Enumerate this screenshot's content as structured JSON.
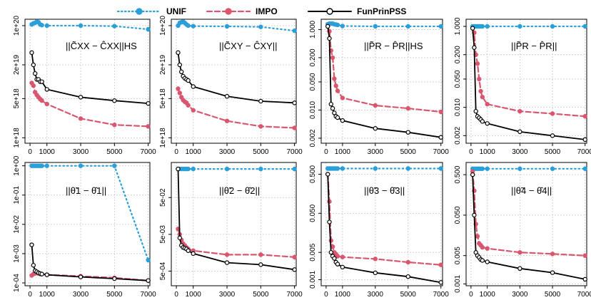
{
  "legend": [
    {
      "name": "UNIF",
      "color": "#2b9fd8",
      "style": "dotted",
      "marker": "filled"
    },
    {
      "name": "IMPO",
      "color": "#d9566e",
      "style": "dashed",
      "marker": "filled"
    },
    {
      "name": "FunPrinPSS",
      "color": "#000000",
      "style": "solid",
      "marker": "open"
    }
  ],
  "chart_data": [
    {
      "type": "line",
      "title": "||C̃XX − ĈXX||HS",
      "log_y": true,
      "x": [
        100,
        200,
        300,
        400,
        500,
        600,
        700,
        1000,
        3000,
        5000,
        7000
      ],
      "ylim": [
        8e+17,
        1.3e+20
      ],
      "ytick_values": [
        1e+18,
        5e+18,
        2e+19,
        1e+20
      ],
      "ytick_labels": [
        "1e+18",
        "5e+18",
        "2e+19",
        "1e+20"
      ],
      "xtick_values": [
        0,
        1000,
        3000,
        5000,
        7000
      ],
      "xtick_labels": [
        "0",
        "1000",
        "3000",
        "5000",
        "7000"
      ],
      "series": [
        {
          "name": "UNIF",
          "values": [
            1.05e+20,
            1.1e+20,
            1.12e+20,
            1.18e+20,
            1.15e+20,
            1.05e+20,
            1.02e+20,
            1e+20,
            1e+20,
            9.8e+19,
            8.6e+19
          ]
        },
        {
          "name": "IMPO",
          "values": [
            9.5e+18,
            8.5e+18,
            6.5e+18,
            5.8e+18,
            5.3e+18,
            4.9e+18,
            4.6e+18,
            4e+18,
            2.2e+18,
            1.7e+18,
            1.6e+18
          ]
        },
        {
          "name": "FunPrinPSS",
          "values": [
            3.3e+19,
            2e+19,
            1.4e+19,
            1.1e+19,
            1.1e+19,
            1e+19,
            1e+19,
            7.3e+18,
            5.3e+18,
            4.6e+18,
            4.1e+18
          ]
        }
      ]
    },
    {
      "type": "line",
      "title": "||C̃XY − ĈXY||",
      "log_y": true,
      "x": [
        100,
        200,
        300,
        400,
        500,
        600,
        700,
        1000,
        3000,
        5000,
        7000
      ],
      "ylim": [
        8e+17,
        1.3e+20
      ],
      "ytick_values": [
        1e+18,
        5e+18,
        2e+19,
        1e+20
      ],
      "ytick_labels": [
        "1e+18",
        "5e+18",
        "2e+19",
        "1e+20"
      ],
      "xtick_values": [
        0,
        1000,
        3000,
        5000,
        7000
      ],
      "xtick_labels": [
        "0",
        "1000",
        "3000",
        "5000",
        "7000"
      ],
      "series": [
        {
          "name": "UNIF",
          "values": [
            1e+20,
            1.12e+20,
            1.15e+20,
            1.18e+20,
            1.12e+20,
            1.05e+20,
            1e+20,
            9.8e+19,
            9.7e+19,
            9.5e+19,
            8.1e+19
          ]
        },
        {
          "name": "IMPO",
          "values": [
            7.5e+18,
            6.3e+18,
            5.3e+18,
            4.7e+18,
            4.4e+18,
            4.2e+18,
            3.8e+18,
            3.1e+18,
            2e+18,
            1.6e+18,
            1.5e+18
          ]
        },
        {
          "name": "FunPrinPSS",
          "values": [
            3.3e+19,
            2e+19,
            1.5e+19,
            1.25e+19,
            1.15e+19,
            1.1e+19,
            1.05e+19,
            8.2e+18,
            5.5e+18,
            4.5e+18,
            4.2e+18
          ]
        }
      ]
    },
    {
      "type": "line",
      "title": "||P̃R − P̂R||HS",
      "log_y": true,
      "x": [
        100,
        200,
        300,
        400,
        500,
        600,
        700,
        1000,
        3000,
        5000,
        7000
      ],
      "ylim": [
        0.0015,
        1.8
      ],
      "ytick_values": [
        0.002,
        0.01,
        0.05,
        0.2,
        1
      ],
      "ytick_labels": [
        "0.002",
        "0.010",
        "0.050",
        "0.200",
        "1.000"
      ],
      "xtick_values": [
        0,
        1000,
        3000,
        5000,
        7000
      ],
      "xtick_labels": [
        "0",
        "1000",
        "3000",
        "5000",
        "7000"
      ],
      "series": [
        {
          "name": "UNIF",
          "values": [
            1.35,
            1.4,
            1.4,
            1.4,
            1.35,
            1.33,
            1.3,
            1.22,
            1.2,
            1.2,
            1.2
          ]
        },
        {
          "name": "IMPO",
          "values": [
            1.2,
            0.9,
            0.3,
            0.2,
            0.06,
            0.04,
            0.03,
            0.02,
            0.013,
            0.011,
            0.009
          ]
        },
        {
          "name": "FunPrinPSS",
          "values": [
            1.2,
            0.6,
            0.014,
            0.011,
            0.0085,
            0.007,
            0.0065,
            0.0055,
            0.0035,
            0.0028,
            0.0021
          ]
        }
      ]
    },
    {
      "type": "line",
      "title": "||P̃R − P̂R||",
      "log_y": true,
      "x": [
        100,
        200,
        300,
        400,
        500,
        600,
        700,
        1000,
        3000,
        5000,
        7000
      ],
      "ylim": [
        0.0013,
        1.5
      ],
      "ytick_values": [
        0.002,
        0.01,
        0.05,
        0.2,
        1
      ],
      "ytick_labels": [
        "0.002",
        "0.010",
        "0.050",
        "0.200",
        "1.000"
      ],
      "xtick_values": [
        0,
        1000,
        3000,
        5000,
        7000
      ],
      "xtick_labels": [
        "0",
        "1000",
        "3000",
        "5000",
        "7000"
      ],
      "series": [
        {
          "name": "UNIF",
          "values": [
            1,
            1,
            1,
            1,
            1,
            1,
            1,
            1,
            1,
            1,
            1
          ]
        },
        {
          "name": "IMPO",
          "values": [
            0.9,
            0.7,
            0.2,
            0.12,
            0.05,
            0.025,
            0.018,
            0.012,
            0.008,
            0.007,
            0.006
          ]
        },
        {
          "name": "FunPrinPSS",
          "values": [
            0.9,
            0.3,
            0.008,
            0.006,
            0.0055,
            0.005,
            0.0045,
            0.004,
            0.0025,
            0.002,
            0.0016
          ]
        }
      ]
    },
    {
      "type": "line",
      "title": "||θ̃1 − θ̂1||",
      "log_y": true,
      "x": [
        100,
        200,
        300,
        400,
        500,
        600,
        700,
        1000,
        3000,
        5000,
        7000
      ],
      "ylim": [
        8e-05,
        1.3
      ],
      "ytick_values": [
        0.0001,
        0.001,
        0.01,
        0.1,
        1
      ],
      "ytick_labels": [
        "1e-04",
        "1e-03",
        "1e-02",
        "1e-01",
        "1e+00"
      ],
      "xtick_values": [
        0,
        1000,
        3000,
        5000,
        7000
      ],
      "xtick_labels": [
        "0",
        "1000",
        "3000",
        "5000",
        "7000"
      ],
      "series": [
        {
          "name": "UNIF",
          "values": [
            1,
            1,
            1,
            1,
            1,
            1,
            1,
            1,
            1,
            1,
            0.0006
          ]
        },
        {
          "name": "IMPO",
          "values": [
            0.00018,
            0.0002,
            0.00021,
            0.00022,
            0.00021,
            0.0002,
            0.0002,
            0.00019,
            0.00017,
            0.00015,
            0.00012
          ]
        },
        {
          "name": "FunPrinPSS",
          "values": [
            0.002,
            0.0004,
            0.00026,
            0.00024,
            0.00022,
            0.00021,
            0.0002,
            0.00019,
            0.00016,
            0.00014,
            0.00012
          ]
        }
      ]
    },
    {
      "type": "line",
      "title": "||θ̃2 − θ̂2||",
      "log_y": true,
      "x": [
        100,
        200,
        300,
        400,
        500,
        600,
        700,
        1000,
        3000,
        5000,
        7000
      ],
      "ylim": [
        0.0002,
        0.45
      ],
      "ytick_values": [
        0.0005,
        0.005,
        0.05
      ],
      "ytick_labels": [
        "5e-04",
        "5e-03",
        "5e-02"
      ],
      "xtick_values": [
        0,
        1000,
        3000,
        5000,
        7000
      ],
      "xtick_labels": [
        "0",
        "1000",
        "3000",
        "5000",
        "7000"
      ],
      "series": [
        {
          "name": "UNIF",
          "values": [
            0.3,
            0.3,
            0.3,
            0.3,
            0.3,
            0.3,
            0.3,
            0.3,
            0.3,
            0.3,
            0.3
          ]
        },
        {
          "name": "IMPO",
          "values": [
            0.007,
            0.005,
            0.0035,
            0.0028,
            0.0025,
            0.0022,
            0.002,
            0.0018,
            0.0014,
            0.0014,
            0.0012
          ]
        },
        {
          "name": "FunPrinPSS",
          "values": [
            0.3,
            0.004,
            0.0025,
            0.0022,
            0.0021,
            0.002,
            0.0018,
            0.0015,
            0.00085,
            0.00075,
            0.00055
          ]
        }
      ]
    },
    {
      "type": "line",
      "title": "||θ̃3 − θ̂3||",
      "log_y": true,
      "x": [
        100,
        200,
        300,
        400,
        500,
        600,
        700,
        1000,
        3000,
        5000,
        7000
      ],
      "ylim": [
        0.0007,
        1.0
      ],
      "ytick_values": [
        0.001,
        0.005,
        0.05,
        0.5
      ],
      "ytick_labels": [
        "0.001",
        "0.005",
        "0.050",
        "0.500"
      ],
      "xtick_values": [
        0,
        1000,
        3000,
        5000,
        7000
      ],
      "xtick_labels": [
        "0",
        "1000",
        "3000",
        "5000",
        "7000"
      ],
      "series": [
        {
          "name": "UNIF",
          "values": [
            0.7,
            0.7,
            0.7,
            0.7,
            0.7,
            0.7,
            0.7,
            0.7,
            0.7,
            0.7,
            0.7
          ]
        },
        {
          "name": "IMPO",
          "values": [
            0.5,
            0.1,
            0.01,
            0.007,
            0.005,
            0.0045,
            0.004,
            0.0038,
            0.0034,
            0.0028,
            0.0024
          ]
        },
        {
          "name": "FunPrinPSS",
          "values": [
            0.5,
            0.03,
            0.005,
            0.004,
            0.0035,
            0.0028,
            0.0025,
            0.0021,
            0.0015,
            0.0012,
            0.00085
          ]
        }
      ]
    },
    {
      "type": "line",
      "title": "||θ̃4 − θ̂4||",
      "log_y": true,
      "x": [
        100,
        200,
        300,
        400,
        500,
        600,
        700,
        1000,
        3000,
        5000,
        7000
      ],
      "ylim": [
        0.0009,
        1.0
      ],
      "ytick_values": [
        0.001,
        0.005,
        0.05,
        0.5
      ],
      "ytick_labels": [
        "0.001",
        "0.005",
        "0.050",
        "0.500"
      ],
      "xtick_values": [
        0,
        1000,
        3000,
        5000,
        7000
      ],
      "xtick_labels": [
        "0",
        "1000",
        "3000",
        "5000",
        "7000"
      ],
      "series": [
        {
          "name": "UNIF",
          "values": [
            0.7,
            0.7,
            0.7,
            0.7,
            0.7,
            0.7,
            0.7,
            0.7,
            0.7,
            0.7,
            0.7
          ]
        },
        {
          "name": "IMPO",
          "values": [
            0.6,
            0.2,
            0.03,
            0.015,
            0.01,
            0.009,
            0.008,
            0.0075,
            0.006,
            0.0055,
            0.005
          ]
        },
        {
          "name": "FunPrinPSS",
          "values": [
            0.5,
            0.05,
            0.006,
            0.005,
            0.0045,
            0.004,
            0.0038,
            0.0035,
            0.0024,
            0.0019,
            0.0013
          ]
        }
      ]
    }
  ]
}
